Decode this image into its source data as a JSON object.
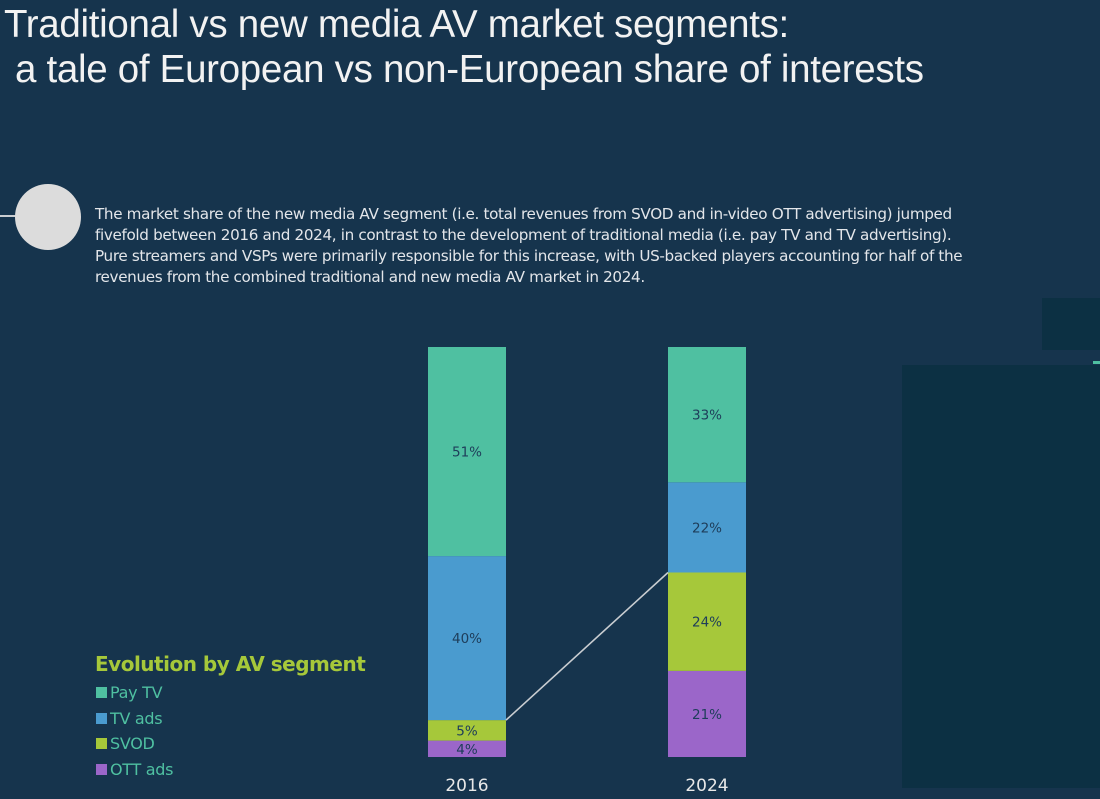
{
  "header": {
    "title_line1": "Traditional vs new media AV market segments:",
    "title_line2": "a tale of European vs non-European share of interests"
  },
  "description": {
    "paragraph1": "The market share of the new media AV segment (i.e. total revenues from SVOD and in-video OTT advertising) jumped fivefold between 2016 and 2024, in contrast to the development of traditional media (i.e. pay TV and TV advertising).",
    "paragraph2": "Pure streamers and VSPs were primarily responsible for this increase, with US-backed players accounting for half of the revenues from the combined traditional and new media AV market in 2024."
  },
  "legend": {
    "title": "Evolution by AV segment",
    "items": [
      {
        "label": "Pay TV",
        "color": "#4fc0a1"
      },
      {
        "label": "TV ads",
        "color": "#4a9bcf"
      },
      {
        "label": "SVOD",
        "color": "#a6c83a"
      },
      {
        "label": "OTT ads",
        "color": "#9b66c9"
      }
    ]
  },
  "chart_data": {
    "type": "bar",
    "stacked": true,
    "title": "Evolution by AV segment",
    "xlabel": "",
    "ylabel": "",
    "categories": [
      "2016",
      "2024"
    ],
    "ylim": [
      0,
      100
    ],
    "unit": "%",
    "series": [
      {
        "name": "OTT ads",
        "color": "#9b66c9",
        "values": [
          4,
          21
        ],
        "labels": [
          "4%",
          "21%"
        ]
      },
      {
        "name": "SVOD",
        "color": "#a6c83a",
        "values": [
          5,
          24
        ],
        "labels": [
          "5%",
          "24%"
        ]
      },
      {
        "name": "TV ads",
        "color": "#4a9bcf",
        "values": [
          40,
          22
        ],
        "labels": [
          "40%",
          "22%"
        ]
      },
      {
        "name": "Pay TV",
        "color": "#4fc0a1",
        "values": [
          51,
          33
        ],
        "labels": [
          "51%",
          "33%"
        ]
      }
    ],
    "connector": {
      "from_category": "2016",
      "to_category": "2024",
      "at": "top of new media (OTT ads + SVOD)",
      "color": "#c9cdd1"
    },
    "legend_position": "bottom-left",
    "grid": false
  }
}
